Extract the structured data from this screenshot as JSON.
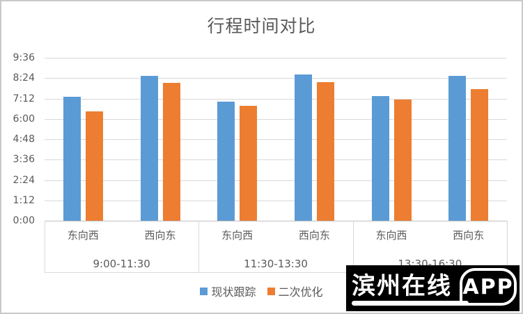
{
  "chart_data": {
    "type": "bar",
    "title": "行程时间对比",
    "xlabel": "",
    "ylabel": "",
    "legend_position": "bottom",
    "grid": true,
    "y_axis": {
      "min": 0,
      "max": 576,
      "step": 72,
      "tick_labels": [
        "0:00",
        "1:12",
        "2:24",
        "3:36",
        "4:48",
        "6:00",
        "7:12",
        "8:24",
        "9:36"
      ]
    },
    "group_labels": [
      "9:00-11:30",
      "11:30-13:30",
      "13:30-16:30"
    ],
    "categories": [
      "东向西",
      "西向东",
      "东向西",
      "西向东",
      "东向西",
      "西向东"
    ],
    "series": [
      {
        "name": "现状跟踪",
        "color": "#5B9BD5",
        "values": [
          439,
          511,
          422,
          517,
          441,
          511
        ],
        "time_labels": [
          "7:19",
          "8:31",
          "7:02",
          "8:37",
          "7:21",
          "8:31"
        ]
      },
      {
        "name": "二次优化",
        "color": "#ED7D31",
        "values": [
          386,
          487,
          407,
          490,
          428,
          466
        ],
        "time_labels": [
          "6:26",
          "8:07",
          "6:47",
          "8:10",
          "7:08",
          "7:46"
        ]
      }
    ]
  },
  "watermark": {
    "text": "滨州在线",
    "badge": "APP"
  },
  "colors": {
    "gridline": "#d9d9d9",
    "axis_line": "#bfbfbf",
    "text": "#595959",
    "series_blue": "#5B9BD5",
    "series_orange": "#ED7D31",
    "watermark_bg": "#000000",
    "watermark_fg": "#ffffff"
  }
}
